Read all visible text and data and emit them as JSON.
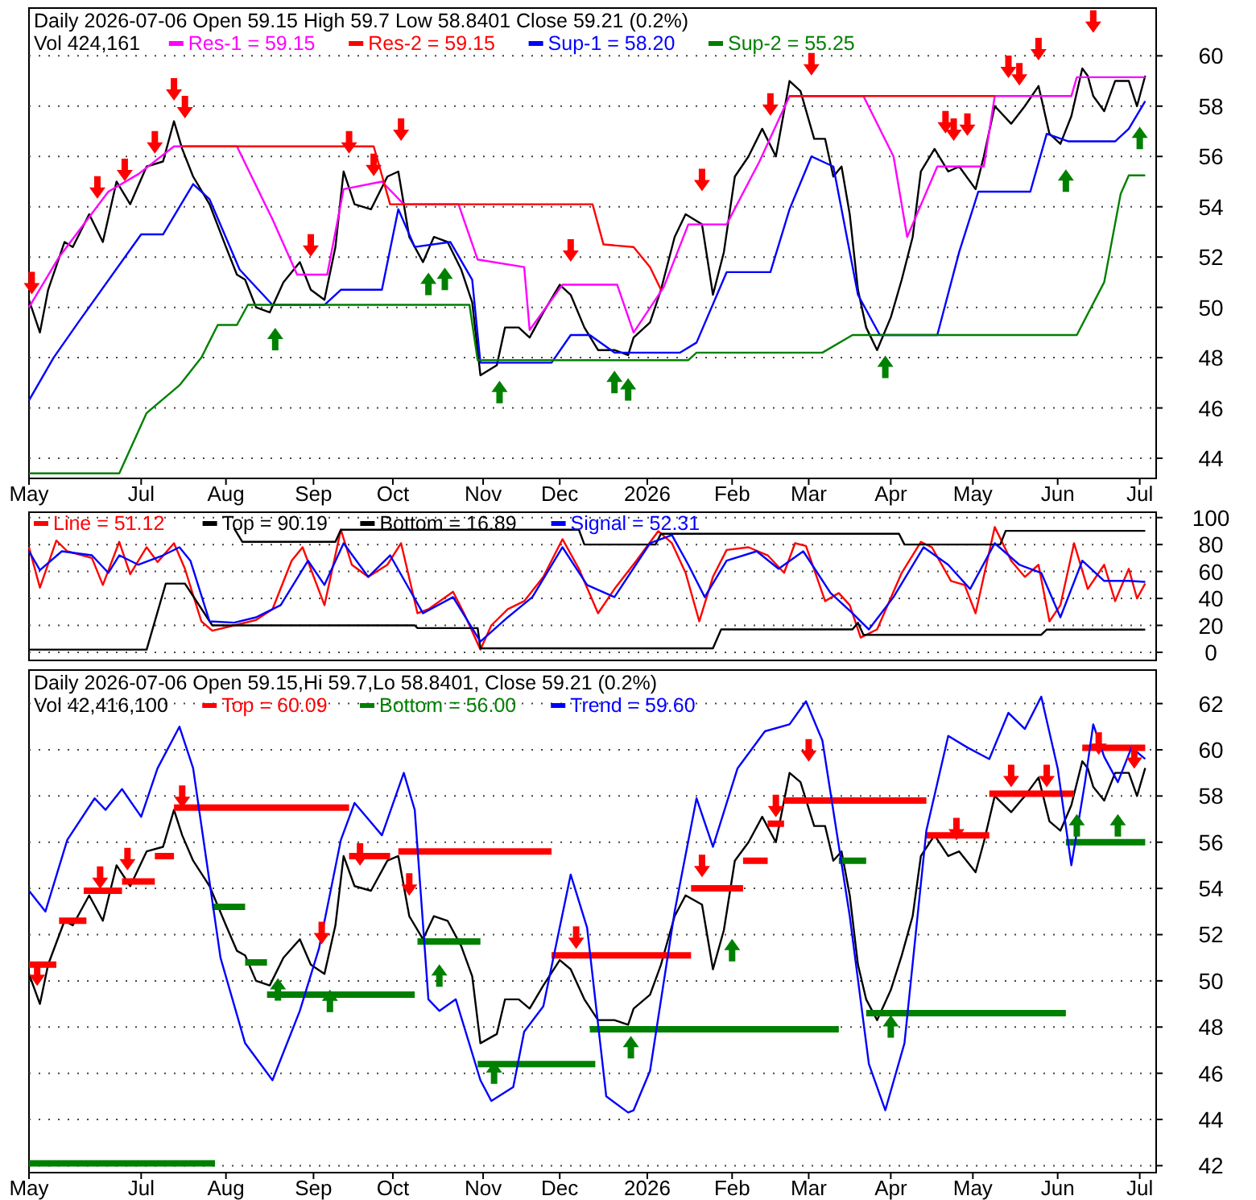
{
  "chart_data": [
    {
      "type": "line",
      "title": "Daily 2026-07-06 Open 59.15  High 59.7  Low 58.8401  Close 59.21 (0.2%)",
      "subtitle": "Vol 424,161",
      "legend": "top left",
      "grid": "y",
      "xlim": [
        "2025-05-21",
        "2026-07-07"
      ],
      "xticks": [
        {
          "value": "2025-05-21",
          "label": "May"
        },
        {
          "value": "2025-07-01",
          "label": "Jul"
        },
        {
          "value": "2025-08-01",
          "label": "Aug"
        },
        {
          "value": "2025-09-02",
          "label": "Sep"
        },
        {
          "value": "2025-10-01",
          "label": "Oct"
        },
        {
          "value": "2025-11-03",
          "label": "Nov"
        },
        {
          "value": "2025-12-01",
          "label": "Dec"
        },
        {
          "value": "2026-01-02",
          "label": "2026"
        },
        {
          "value": "2026-02-02",
          "label": "Feb"
        },
        {
          "value": "2026-03-02",
          "label": "Mar"
        },
        {
          "value": "2026-04-01",
          "label": "Apr"
        },
        {
          "value": "2026-05-01",
          "label": "May"
        },
        {
          "value": "2026-06-01",
          "label": "Jun"
        },
        {
          "value": "2026-07-01",
          "label": "Jul"
        }
      ],
      "ylim": [
        43.2,
        61.9
      ],
      "yticks": [
        44,
        46,
        48,
        50,
        52,
        54,
        56,
        58,
        60
      ],
      "series": [
        {
          "color": "#000000",
          "x": [
            "2025-05-21",
            "2025-05-25",
            "2025-05-28",
            "2025-06-03",
            "2025-06-06",
            "2025-06-12",
            "2025-06-17",
            "2025-06-22",
            "2025-06-27",
            "2025-07-03",
            "2025-07-09",
            "2025-07-13",
            "2025-07-16",
            "2025-07-20",
            "2025-07-26",
            "2025-08-01",
            "2025-08-05",
            "2025-08-08",
            "2025-08-12",
            "2025-08-17",
            "2025-08-22",
            "2025-08-28",
            "2025-09-01",
            "2025-09-06",
            "2025-09-10",
            "2025-09-13",
            "2025-09-17",
            "2025-09-23",
            "2025-09-29",
            "2025-10-03",
            "2025-10-07",
            "2025-10-12",
            "2025-10-16",
            "2025-10-21",
            "2025-10-26",
            "2025-10-30",
            "2025-11-02",
            "2025-11-05",
            "2025-11-08",
            "2025-11-11",
            "2025-11-16",
            "2025-11-20",
            "2025-11-25",
            "2025-12-01",
            "2025-12-05",
            "2025-12-10",
            "2025-12-15",
            "2025-12-21",
            "2025-12-26",
            "2025-12-28",
            "2026-01-03",
            "2026-01-07",
            "2026-01-12",
            "2026-01-16",
            "2026-01-22",
            "2026-01-26",
            "2026-01-30",
            "2026-02-03",
            "2026-02-08",
            "2026-02-13",
            "2026-02-18",
            "2026-02-23",
            "2026-02-27",
            "2026-03-04",
            "2026-03-08",
            "2026-03-11",
            "2026-03-14",
            "2026-03-17",
            "2026-03-20",
            "2026-03-23",
            "2026-03-27",
            "2026-04-01",
            "2026-04-05",
            "2026-04-09",
            "2026-04-12",
            "2026-04-17",
            "2026-04-22",
            "2026-04-26",
            "2026-05-02",
            "2026-05-05",
            "2026-05-09",
            "2026-05-15",
            "2026-05-20",
            "2026-05-25",
            "2026-05-29",
            "2026-06-02",
            "2026-06-06",
            "2026-06-10",
            "2026-06-12",
            "2026-06-14",
            "2026-06-18",
            "2026-06-22",
            "2026-06-27",
            "2026-06-30",
            "2026-07-03"
          ],
          "values": [
            50.3,
            49.0,
            50.7,
            52.6,
            52.4,
            53.7,
            52.6,
            55.0,
            54.1,
            55.6,
            55.8,
            57.4,
            56.3,
            55.2,
            54.1,
            52.4,
            51.3,
            51.1,
            50.0,
            49.8,
            51.0,
            51.8,
            50.7,
            50.3,
            52.4,
            55.4,
            54.1,
            53.9,
            55.2,
            55.4,
            52.8,
            51.8,
            52.8,
            52.6,
            51.5,
            50.2,
            47.3,
            47.5,
            47.7,
            49.2,
            49.2,
            48.8,
            49.8,
            50.9,
            50.5,
            49.2,
            48.3,
            48.3,
            48.1,
            48.8,
            49.4,
            50.7,
            52.8,
            53.7,
            53.3,
            50.5,
            52.2,
            55.2,
            56.0,
            57.1,
            56.0,
            59.0,
            58.6,
            56.7,
            56.7,
            55.2,
            55.6,
            53.7,
            50.7,
            49.2,
            48.3,
            49.6,
            51.1,
            52.8,
            55.4,
            56.3,
            55.4,
            55.6,
            54.7,
            56.0,
            58.0,
            57.3,
            58.0,
            58.8,
            56.9,
            56.5,
            57.6,
            59.5,
            59.2,
            58.4,
            57.8,
            59.0,
            59.0,
            58.0,
            59.21
          ]
        },
        {
          "name": "Res-1 = 59.15",
          "color": "#ff00ff",
          "x": [
            "2025-05-21",
            "2025-06-01",
            "2025-06-19",
            "2025-06-30",
            "2025-07-13",
            "2025-08-05",
            "2025-08-18",
            "2025-08-27",
            "2025-09-07",
            "2025-09-13",
            "2025-09-27",
            "2025-10-05",
            "2025-10-25",
            "2025-11-01",
            "2025-11-18",
            "2025-11-20",
            "2025-12-02",
            "2025-12-22",
            "2025-12-28",
            "2026-01-08",
            "2026-01-17",
            "2026-01-31",
            "2026-02-12",
            "2026-02-23",
            "2026-03-22",
            "2026-04-02",
            "2026-04-07",
            "2026-04-18",
            "2026-05-05",
            "2026-05-09",
            "2026-06-06",
            "2026-06-08",
            "2026-07-03"
          ],
          "values": [
            50.0,
            52.0,
            54.6,
            55.3,
            56.4,
            56.4,
            53.5,
            51.3,
            51.3,
            54.7,
            55.0,
            54.1,
            54.1,
            51.9,
            51.6,
            49.1,
            50.9,
            50.9,
            49.0,
            50.8,
            53.3,
            53.3,
            55.8,
            58.4,
            58.4,
            56.0,
            52.8,
            55.6,
            55.6,
            58.4,
            58.4,
            59.15,
            59.15
          ]
        },
        {
          "name": "Res-2 = 59.15",
          "color": "#ff0000",
          "x": [
            "2025-07-16",
            "2025-09-24",
            "2025-09-30",
            "2025-12-13",
            "2025-12-17",
            "2025-12-28",
            "2026-01-03",
            "2026-01-07",
            "2026-01-08",
            "2026-02-23",
            "2026-05-09"
          ],
          "values": [
            56.4,
            56.4,
            54.1,
            54.1,
            52.5,
            52.4,
            51.6,
            50.7,
            null,
            58.4,
            58.4
          ]
        },
        {
          "name": "Sup-1 = 58.20",
          "color": "#0000ff",
          "x": [
            "2025-05-21",
            "2025-05-30",
            "2025-06-08",
            "2025-07-01",
            "2025-07-09",
            "2025-07-20",
            "2025-07-26",
            "2025-08-06",
            "2025-08-18",
            "2025-09-06",
            "2025-09-12",
            "2025-09-27",
            "2025-10-03",
            "2025-10-09",
            "2025-10-22",
            "2025-10-30",
            "2025-11-02",
            "2025-11-28",
            "2025-12-05",
            "2025-12-12",
            "2025-12-21",
            "2026-01-14",
            "2026-01-20",
            "2026-01-31",
            "2026-02-16",
            "2026-02-23",
            "2026-03-03",
            "2026-03-11",
            "2026-03-20",
            "2026-03-28",
            "2026-04-18",
            "2026-04-26",
            "2026-05-03",
            "2026-05-22",
            "2026-05-28",
            "2026-06-05",
            "2026-06-22",
            "2026-06-27",
            "2026-07-03"
          ],
          "values": [
            46.3,
            48.0,
            49.4,
            52.9,
            52.9,
            54.9,
            54.3,
            51.5,
            50.1,
            50.1,
            50.7,
            50.7,
            53.9,
            52.4,
            52.6,
            51.1,
            47.8,
            47.8,
            48.9,
            48.9,
            48.2,
            48.2,
            48.6,
            51.4,
            51.4,
            53.9,
            56.0,
            55.6,
            50.5,
            48.9,
            48.9,
            52.2,
            54.6,
            54.6,
            56.9,
            56.6,
            56.6,
            57.1,
            58.2
          ]
        },
        {
          "name": "Sup-2 = 55.25",
          "color": "#008000",
          "x": [
            "2025-05-21",
            "2025-06-23",
            "2025-07-03",
            "2025-07-15",
            "2025-07-23",
            "2025-07-29",
            "2025-08-05",
            "2025-08-09",
            "2025-10-29",
            "2025-11-01",
            "2026-01-17",
            "2026-01-20",
            "2026-03-07",
            "2026-03-18",
            "2026-06-08",
            "2026-06-18",
            "2026-06-24",
            "2026-06-27",
            "2026-07-03"
          ],
          "values": [
            43.4,
            43.4,
            45.8,
            46.9,
            48.0,
            49.3,
            49.3,
            50.1,
            50.1,
            47.9,
            47.9,
            48.2,
            48.2,
            48.9,
            48.9,
            51.0,
            54.5,
            55.25,
            55.25
          ]
        },
        {
          "type": "scatter",
          "marker": "triangle",
          "color": "#ff0000",
          "x": [
            "2025-05-22",
            "2025-06-15",
            "2025-06-25",
            "2025-07-06",
            "2025-07-13",
            "2025-07-17",
            "2025-09-01",
            "2025-09-15",
            "2025-09-24",
            "2025-10-04",
            "2025-12-05",
            "2026-01-22",
            "2026-02-16",
            "2026-03-03",
            "2026-04-21",
            "2026-04-24",
            "2026-04-29",
            "2026-05-14",
            "2026-05-18",
            "2026-05-25",
            "2026-06-14"
          ],
          "values": [
            50.9,
            54.7,
            55.4,
            56.5,
            58.6,
            57.9,
            52.4,
            56.5,
            55.6,
            57.0,
            52.2,
            55.0,
            58.0,
            59.6,
            57.3,
            57.0,
            57.2,
            59.5,
            59.2,
            60.2,
            61.3
          ]
        },
        {
          "type": "scatter",
          "marker": "triangle",
          "color": "#008000",
          "x": [
            "2025-08-19",
            "2025-10-14",
            "2025-10-20",
            "2025-11-09",
            "2025-12-21",
            "2025-12-26",
            "2026-03-30",
            "2026-06-04",
            "2026-07-01"
          ],
          "values": [
            48.8,
            51.0,
            51.2,
            46.7,
            47.1,
            46.8,
            47.7,
            55.1,
            56.8
          ]
        }
      ]
    },
    {
      "type": "line",
      "legend": "top left",
      "grid": "y",
      "tick_labels": "y",
      "xlim": [
        "2025-05-21",
        "2026-07-07"
      ],
      "ylim": [
        -6,
        104
      ],
      "yticks": [
        0,
        20,
        40,
        60,
        80,
        100
      ],
      "series": [
        {
          "name": "Line = 51.12",
          "color": "#ff0000",
          "x": [
            "2025-05-21",
            "2025-05-25",
            "2025-05-31",
            "2025-06-04",
            "2025-06-13",
            "2025-06-17",
            "2025-06-23",
            "2025-06-27",
            "2025-07-03",
            "2025-07-07",
            "2025-07-13",
            "2025-07-17",
            "2025-07-23",
            "2025-07-27",
            "2025-08-04",
            "2025-08-12",
            "2025-08-18",
            "2025-08-25",
            "2025-08-29",
            "2025-09-06",
            "2025-09-12",
            "2025-09-16",
            "2025-09-22",
            "2025-09-29",
            "2025-10-04",
            "2025-10-10",
            "2025-10-14",
            "2025-10-23",
            "2025-10-27",
            "2025-11-02",
            "2025-11-06",
            "2025-11-12",
            "2025-11-18",
            "2025-11-25",
            "2025-12-02",
            "2025-12-08",
            "2025-12-15",
            "2025-12-21",
            "2025-12-29",
            "2026-01-06",
            "2026-01-11",
            "2026-01-16",
            "2026-01-21",
            "2026-01-26",
            "2026-01-31",
            "2026-02-08",
            "2026-02-15",
            "2026-02-21",
            "2026-02-25",
            "2026-03-01",
            "2026-03-08",
            "2026-03-13",
            "2026-03-17",
            "2026-03-21",
            "2026-03-27",
            "2026-04-05",
            "2026-04-12",
            "2026-04-16",
            "2026-04-23",
            "2026-04-28",
            "2026-05-02",
            "2026-05-09",
            "2026-05-15",
            "2026-05-20",
            "2026-05-25",
            "2026-05-29",
            "2026-06-02",
            "2026-06-07",
            "2026-06-12",
            "2026-06-18",
            "2026-06-22",
            "2026-06-27",
            "2026-06-30",
            "2026-07-03"
          ],
          "values": [
            78,
            48,
            83,
            75,
            70,
            50,
            82,
            58,
            78,
            67,
            81,
            62,
            23,
            16,
            20,
            24,
            32,
            68,
            78,
            35,
            91,
            65,
            56,
            65,
            81,
            29,
            32,
            45,
            29,
            2,
            20,
            32,
            38,
            56,
            84,
            62,
            29,
            47,
            68,
            90,
            81,
            59,
            23,
            56,
            76,
            78,
            72,
            59,
            81,
            79,
            38,
            44,
            35,
            11,
            17,
            59,
            82,
            78,
            53,
            50,
            29,
            93,
            68,
            56,
            65,
            23,
            35,
            81,
            47,
            65,
            38,
            62,
            40,
            51.12
          ]
        },
        {
          "name": "Top = 90.19",
          "color": "#000000",
          "x": [
            "2025-08-04",
            "2025-08-07",
            "2025-09-10",
            "2025-09-12",
            "2025-12-08",
            "2025-12-10",
            "2026-01-05",
            "2026-01-07",
            "2026-04-04",
            "2026-04-06",
            "2026-05-11",
            "2026-05-13",
            "2026-07-03"
          ],
          "values": [
            92,
            82,
            82,
            91,
            91,
            80,
            80,
            88,
            88,
            80,
            80,
            90.19,
            90.19
          ]
        },
        {
          "name": "Bottom = 16.89",
          "color": "#000000",
          "x": [
            "2025-05-21",
            "2025-07-03",
            "2025-07-10",
            "2025-07-17",
            "2025-07-27",
            "2025-10-09",
            "2025-10-10",
            "2025-11-01",
            "2025-11-02",
            "2026-01-26",
            "2026-01-29",
            "2026-03-18",
            "2026-03-20",
            "2026-03-22",
            "2026-05-26",
            "2026-05-28",
            "2026-07-03"
          ],
          "values": [
            2,
            2,
            51,
            51,
            20,
            20,
            18,
            18,
            3,
            3,
            17,
            17,
            22,
            13,
            13,
            16.89,
            16.89
          ]
        },
        {
          "name": "Signal = 52.31",
          "color": "#0000ff",
          "x": [
            "2025-05-21",
            "2025-05-25",
            "2025-06-02",
            "2025-06-13",
            "2025-06-19",
            "2025-06-23",
            "2025-06-30",
            "2025-07-09",
            "2025-07-15",
            "2025-07-19",
            "2025-07-26",
            "2025-08-04",
            "2025-08-12",
            "2025-08-21",
            "2025-08-31",
            "2025-09-06",
            "2025-09-13",
            "2025-09-22",
            "2025-09-30",
            "2025-10-12",
            "2025-10-23",
            "2025-11-02",
            "2025-11-12",
            "2025-11-21",
            "2025-12-02",
            "2025-12-11",
            "2025-12-21",
            "2026-01-03",
            "2026-01-11",
            "2026-01-17",
            "2026-01-23",
            "2026-01-31",
            "2026-02-11",
            "2026-02-19",
            "2026-02-28",
            "2026-03-10",
            "2026-03-18",
            "2026-03-24",
            "2026-04-02",
            "2026-04-13",
            "2026-04-22",
            "2026-04-30",
            "2026-05-09",
            "2026-05-18",
            "2026-05-26",
            "2026-06-02",
            "2026-06-10",
            "2026-06-18",
            "2026-06-27",
            "2026-07-03"
          ],
          "values": [
            75,
            61,
            75,
            72,
            59,
            72,
            65,
            72,
            78,
            68,
            23,
            22,
            26,
            35,
            68,
            50,
            81,
            56,
            72,
            29,
            41,
            8,
            26,
            41,
            78,
            50,
            41,
            81,
            87,
            65,
            41,
            68,
            75,
            62,
            75,
            44,
            29,
            17,
            41,
            78,
            65,
            47,
            81,
            65,
            59,
            26,
            68,
            53,
            53,
            52.31
          ]
        }
      ]
    },
    {
      "type": "line",
      "title": "Daily 2026-07-06 Open 59.15,Hi 59.7,Lo 58.8401, Close 59.21 (0.2%)",
      "subtitle": "Vol 42,416,100",
      "legend": "top left",
      "grid": "y",
      "xlim": [
        "2025-05-21",
        "2026-07-07"
      ],
      "xticks": [
        {
          "value": "2025-05-21",
          "label": "May"
        },
        {
          "value": "2025-07-01",
          "label": "Jul"
        },
        {
          "value": "2025-08-01",
          "label": "Aug"
        },
        {
          "value": "2025-09-02",
          "label": "Sep"
        },
        {
          "value": "2025-10-01",
          "label": "Oct"
        },
        {
          "value": "2025-11-03",
          "label": "Nov"
        },
        {
          "value": "2025-12-01",
          "label": "Dec"
        },
        {
          "value": "2026-01-02",
          "label": "2026"
        },
        {
          "value": "2026-02-02",
          "label": "Feb"
        },
        {
          "value": "2026-03-02",
          "label": "Mar"
        },
        {
          "value": "2026-04-01",
          "label": "Apr"
        },
        {
          "value": "2026-05-01",
          "label": "May"
        },
        {
          "value": "2026-06-01",
          "label": "Jun"
        },
        {
          "value": "2026-07-01",
          "label": "Jul"
        }
      ],
      "ylim": [
        41.7,
        63.45
      ],
      "yticks": [
        42,
        44,
        46,
        48,
        50,
        52,
        54,
        56,
        58,
        60,
        62
      ],
      "series": [
        {
          "color": "#000000",
          "x": [
            "2025-05-21",
            "2025-05-25",
            "2025-05-28",
            "2025-06-03",
            "2025-06-06",
            "2025-06-12",
            "2025-06-17",
            "2025-06-22",
            "2025-06-27",
            "2025-07-03",
            "2025-07-09",
            "2025-07-13",
            "2025-07-16",
            "2025-07-20",
            "2025-07-26",
            "2025-08-01",
            "2025-08-05",
            "2025-08-08",
            "2025-08-12",
            "2025-08-17",
            "2025-08-22",
            "2025-08-28",
            "2025-09-01",
            "2025-09-06",
            "2025-09-10",
            "2025-09-13",
            "2025-09-17",
            "2025-09-23",
            "2025-09-29",
            "2025-10-03",
            "2025-10-07",
            "2025-10-12",
            "2025-10-16",
            "2025-10-21",
            "2025-10-26",
            "2025-10-30",
            "2025-11-02",
            "2025-11-05",
            "2025-11-08",
            "2025-11-11",
            "2025-11-16",
            "2025-11-20",
            "2025-11-25",
            "2025-12-01",
            "2025-12-05",
            "2025-12-10",
            "2025-12-15",
            "2025-12-21",
            "2025-12-26",
            "2025-12-28",
            "2026-01-03",
            "2026-01-07",
            "2026-01-12",
            "2026-01-16",
            "2026-01-22",
            "2026-01-26",
            "2026-01-30",
            "2026-02-03",
            "2026-02-08",
            "2026-02-13",
            "2026-02-18",
            "2026-02-23",
            "2026-02-27",
            "2026-03-04",
            "2026-03-08",
            "2026-03-11",
            "2026-03-14",
            "2026-03-17",
            "2026-03-20",
            "2026-03-23",
            "2026-03-27",
            "2026-04-01",
            "2026-04-05",
            "2026-04-09",
            "2026-04-12",
            "2026-04-17",
            "2026-04-22",
            "2026-04-26",
            "2026-05-02",
            "2026-05-05",
            "2026-05-09",
            "2026-05-15",
            "2026-05-20",
            "2026-05-25",
            "2026-05-29",
            "2026-06-02",
            "2026-06-06",
            "2026-06-10",
            "2026-06-12",
            "2026-06-14",
            "2026-06-18",
            "2026-06-22",
            "2026-06-27",
            "2026-06-30",
            "2026-07-03"
          ],
          "values": [
            50.3,
            49.0,
            50.7,
            52.6,
            52.4,
            53.7,
            52.6,
            55.0,
            54.1,
            55.6,
            55.8,
            57.4,
            56.3,
            55.2,
            54.1,
            52.4,
            51.3,
            51.1,
            50.0,
            49.8,
            51.0,
            51.8,
            50.7,
            50.3,
            52.4,
            55.4,
            54.1,
            53.9,
            55.2,
            55.4,
            52.8,
            51.8,
            52.8,
            52.6,
            51.5,
            50.2,
            47.3,
            47.5,
            47.7,
            49.2,
            49.2,
            48.8,
            49.8,
            50.9,
            50.5,
            49.2,
            48.3,
            48.3,
            48.1,
            48.8,
            49.4,
            50.7,
            52.8,
            53.7,
            53.3,
            50.5,
            52.2,
            55.2,
            56.0,
            57.1,
            56.0,
            59.0,
            58.6,
            56.7,
            56.7,
            55.2,
            55.6,
            53.7,
            50.7,
            49.2,
            48.3,
            49.6,
            51.1,
            52.8,
            55.4,
            56.3,
            55.4,
            55.6,
            54.7,
            56.0,
            58.0,
            57.3,
            58.0,
            58.8,
            56.9,
            56.5,
            57.6,
            59.5,
            59.2,
            58.4,
            57.8,
            59.0,
            59.0,
            58.0,
            59.21
          ]
        },
        {
          "name": "Top = 60.09",
          "type": "step",
          "color": "#ff0000",
          "x": [
            "2025-05-21",
            "2025-05-31",
            null,
            "2025-06-01",
            "2025-06-11",
            null,
            "2025-06-10",
            "2025-06-24",
            null,
            "2025-06-24",
            "2025-07-06",
            null,
            "2025-07-06",
            "2025-07-13",
            null,
            "2025-07-13",
            "2025-09-15",
            null,
            "2025-09-15",
            "2025-09-30",
            null,
            "2025-10-03",
            "2025-11-28",
            null,
            "2025-11-28",
            "2026-01-18",
            null,
            "2026-01-18",
            "2026-02-06",
            null,
            "2026-02-06",
            "2026-02-15",
            null,
            "2026-02-15",
            "2026-02-21",
            null,
            "2026-02-21",
            "2026-04-14",
            null,
            "2026-04-14",
            "2026-05-07",
            null,
            "2026-05-07",
            "2026-06-07",
            null,
            "2026-06-10",
            "2026-07-03"
          ],
          "values": [
            50.7,
            50.7,
            null,
            52.6,
            52.6,
            null,
            53.9,
            53.9,
            null,
            54.3,
            54.3,
            null,
            55.4,
            55.4,
            null,
            57.5,
            57.5,
            null,
            55.4,
            55.4,
            null,
            55.6,
            55.6,
            null,
            51.1,
            51.1,
            null,
            54.0,
            54.0,
            null,
            55.2,
            55.2,
            null,
            56.8,
            56.8,
            null,
            57.8,
            57.8,
            null,
            56.3,
            56.3,
            null,
            58.1,
            58.1,
            null,
            60.09,
            60.09
          ]
        },
        {
          "name": "Bottom = 56.00",
          "type": "step",
          "color": "#008000",
          "x": [
            "2025-05-21",
            "2025-07-28",
            null,
            "2025-07-27",
            "2025-08-08",
            null,
            "2025-08-08",
            "2025-08-16",
            null,
            "2025-08-16",
            "2025-10-09",
            null,
            "2025-10-10",
            "2025-11-02",
            null,
            "2025-11-01",
            "2025-12-14",
            null,
            "2025-12-12",
            "2026-03-13",
            null,
            "2026-03-13",
            "2026-03-23",
            null,
            "2026-03-23",
            "2026-06-04",
            null,
            "2026-06-04",
            "2026-07-03"
          ],
          "values": [
            42.1,
            42.1,
            null,
            53.2,
            53.2,
            null,
            50.8,
            50.8,
            null,
            49.4,
            49.4,
            null,
            51.7,
            51.7,
            null,
            46.4,
            46.4,
            null,
            47.9,
            47.9,
            null,
            55.2,
            55.2,
            null,
            48.6,
            48.6,
            null,
            56.0,
            56.0
          ]
        },
        {
          "name": "Trend = 59.60",
          "color": "#0000ff",
          "x": [
            "2025-05-21",
            "2025-05-27",
            "2025-06-04",
            "2025-06-14",
            "2025-06-18",
            "2025-06-24",
            "2025-07-01",
            "2025-07-07",
            "2025-07-15",
            "2025-07-20",
            "2025-07-30",
            "2025-08-08",
            "2025-08-18",
            "2025-08-28",
            "2025-09-04",
            "2025-09-12",
            "2025-09-17",
            "2025-09-27",
            "2025-10-05",
            "2025-10-09",
            "2025-10-14",
            "2025-10-18",
            "2025-10-24",
            "2025-11-02",
            "2025-11-06",
            "2025-11-14",
            "2025-11-18",
            "2025-11-25",
            "2025-12-05",
            "2025-12-11",
            "2025-12-18",
            "2025-12-26",
            "2025-12-28",
            "2026-01-03",
            "2026-01-12",
            "2026-01-20",
            "2026-01-26",
            "2026-02-04",
            "2026-02-14",
            "2026-02-23",
            "2026-03-01",
            "2026-03-07",
            "2026-03-17",
            "2026-03-24",
            "2026-03-30",
            "2026-04-06",
            "2026-04-14",
            "2026-04-22",
            "2026-04-29",
            "2026-05-07",
            "2026-05-14",
            "2026-05-20",
            "2026-05-26",
            "2026-06-01",
            "2026-06-06",
            "2026-06-11",
            "2026-06-14",
            "2026-06-18",
            "2026-06-23",
            "2026-06-28",
            "2026-07-03"
          ],
          "values": [
            53.9,
            53.0,
            56.1,
            57.9,
            57.4,
            58.3,
            57.1,
            59.2,
            61.0,
            59.2,
            51.0,
            47.3,
            45.7,
            48.7,
            51.4,
            56.1,
            57.7,
            56.3,
            59.0,
            57.4,
            49.2,
            48.7,
            49.2,
            45.7,
            44.8,
            45.4,
            47.8,
            48.9,
            54.6,
            52.3,
            45.0,
            44.3,
            44.4,
            46.1,
            53.0,
            57.9,
            55.8,
            59.2,
            60.8,
            61.1,
            62.1,
            60.4,
            52.8,
            46.4,
            44.4,
            47.3,
            56.5,
            60.6,
            60.1,
            59.6,
            61.6,
            60.9,
            62.3,
            59.2,
            55.0,
            58.6,
            61.1,
            59.7,
            58.6,
            60.1,
            59.6
          ]
        },
        {
          "type": "scatter",
          "marker": "triangle",
          "color": "#ff0000",
          "x": [
            "2025-05-24",
            "2025-06-16",
            "2025-06-26",
            "2025-07-16",
            "2025-09-05",
            "2025-09-19",
            "2025-10-07",
            "2025-12-07",
            "2026-01-22",
            "2026-02-18",
            "2026-03-02",
            "2026-04-25",
            "2026-05-15",
            "2026-05-28",
            "2026-06-16",
            "2026-06-29"
          ],
          "values": [
            50.2,
            54.4,
            55.2,
            57.9,
            52.0,
            55.4,
            54.1,
            51.8,
            54.9,
            57.5,
            59.9,
            56.5,
            58.8,
            58.8,
            60.2,
            59.6
          ]
        },
        {
          "type": "scatter",
          "marker": "triangle",
          "color": "#008000",
          "x": [
            "2025-08-20",
            "2025-09-08",
            "2025-10-18",
            "2025-11-07",
            "2025-12-27",
            "2026-02-02",
            "2026-04-01",
            "2026-06-08",
            "2026-06-23"
          ],
          "values": [
            49.7,
            49.2,
            50.3,
            46.1,
            47.2,
            51.4,
            48.1,
            56.8,
            56.8
          ]
        }
      ]
    }
  ]
}
